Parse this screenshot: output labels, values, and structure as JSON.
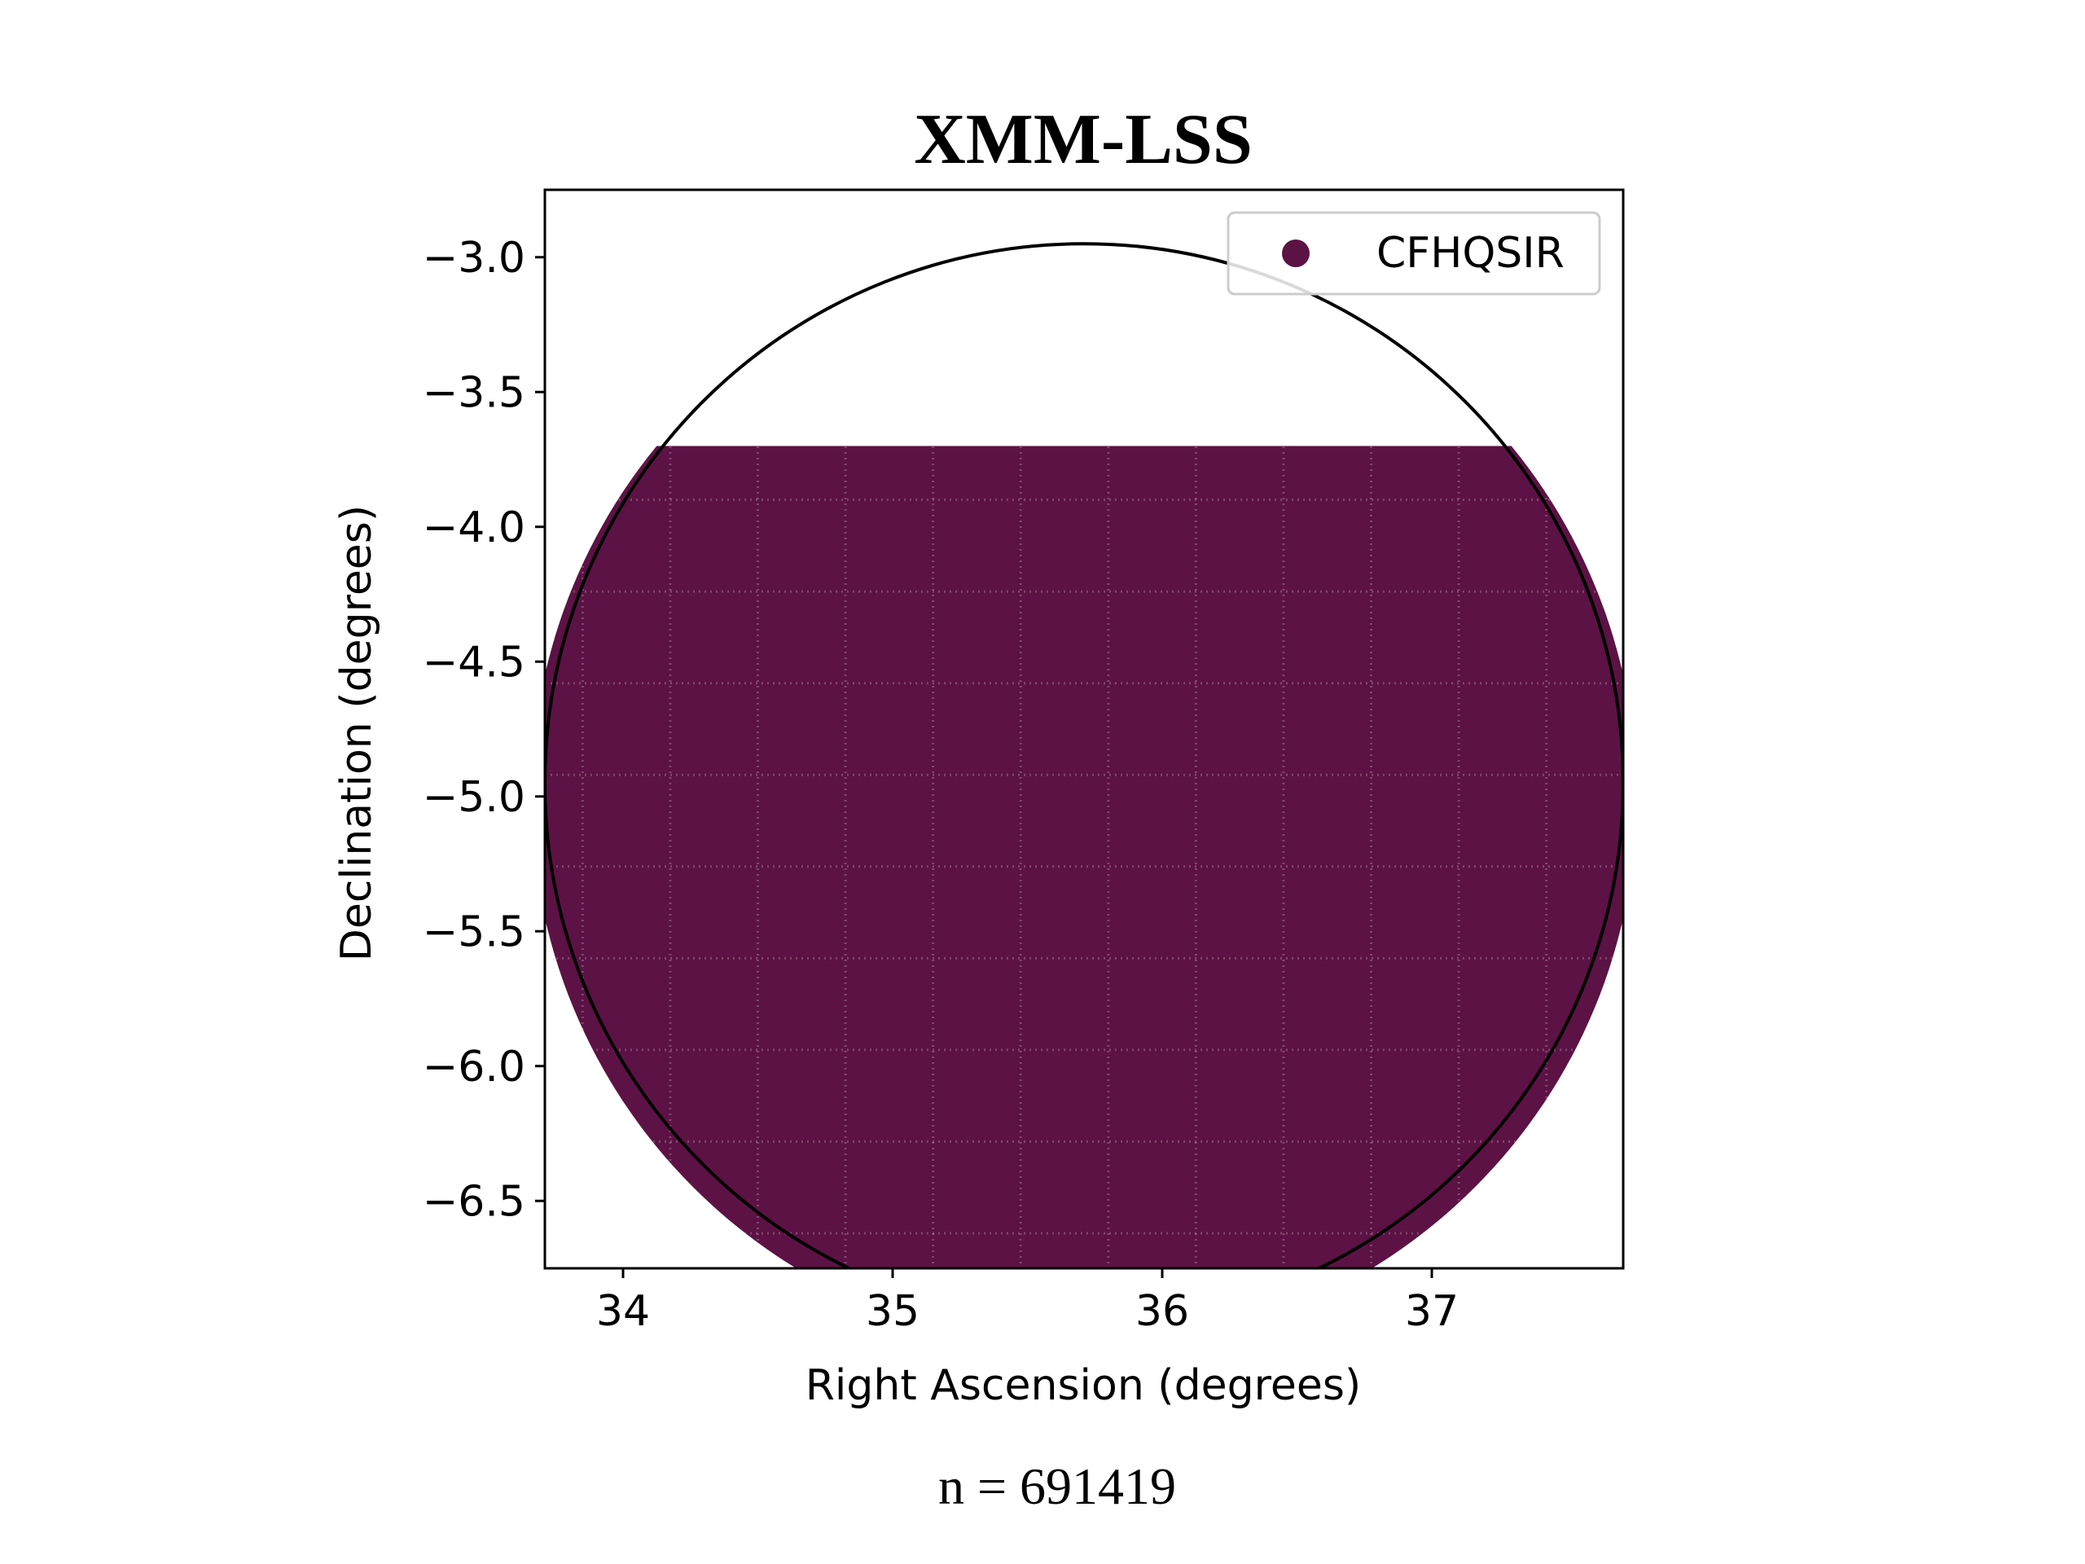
{
  "chart_data": {
    "type": "scatter",
    "title": "XMM-LSS",
    "xlabel": "Right Ascension (degrees)",
    "ylabel": "Declination (degrees)",
    "xlim": [
      33.71,
      37.71
    ],
    "ylim": [
      -6.75,
      -2.75
    ],
    "xticks": [
      34,
      35,
      36,
      37
    ],
    "xtick_labels": [
      "34",
      "35",
      "36",
      "37"
    ],
    "yticks": [
      -3.0,
      -3.5,
      -4.0,
      -4.5,
      -5.0,
      -5.5,
      -6.0,
      -6.5
    ],
    "ytick_labels": [
      "−3.0",
      "−3.5",
      "−4.0",
      "−4.5",
      "−5.0",
      "−5.5",
      "−6.0",
      "−6.5"
    ],
    "series": [
      {
        "name": "CFHQSIR",
        "color": "#5c1244",
        "marker": "circle",
        "coverage": {
          "dec_max": -3.7,
          "circle_center_ra": 35.71,
          "circle_center_dec": -5.0,
          "circle_radius_deg": 2.05
        }
      }
    ],
    "overlay_circle": {
      "center_ra": 35.71,
      "center_dec": -4.95,
      "radius_deg": 2.0,
      "color": "#000000"
    },
    "grid": false,
    "legend": "top-right",
    "footer": "n = 691419"
  }
}
